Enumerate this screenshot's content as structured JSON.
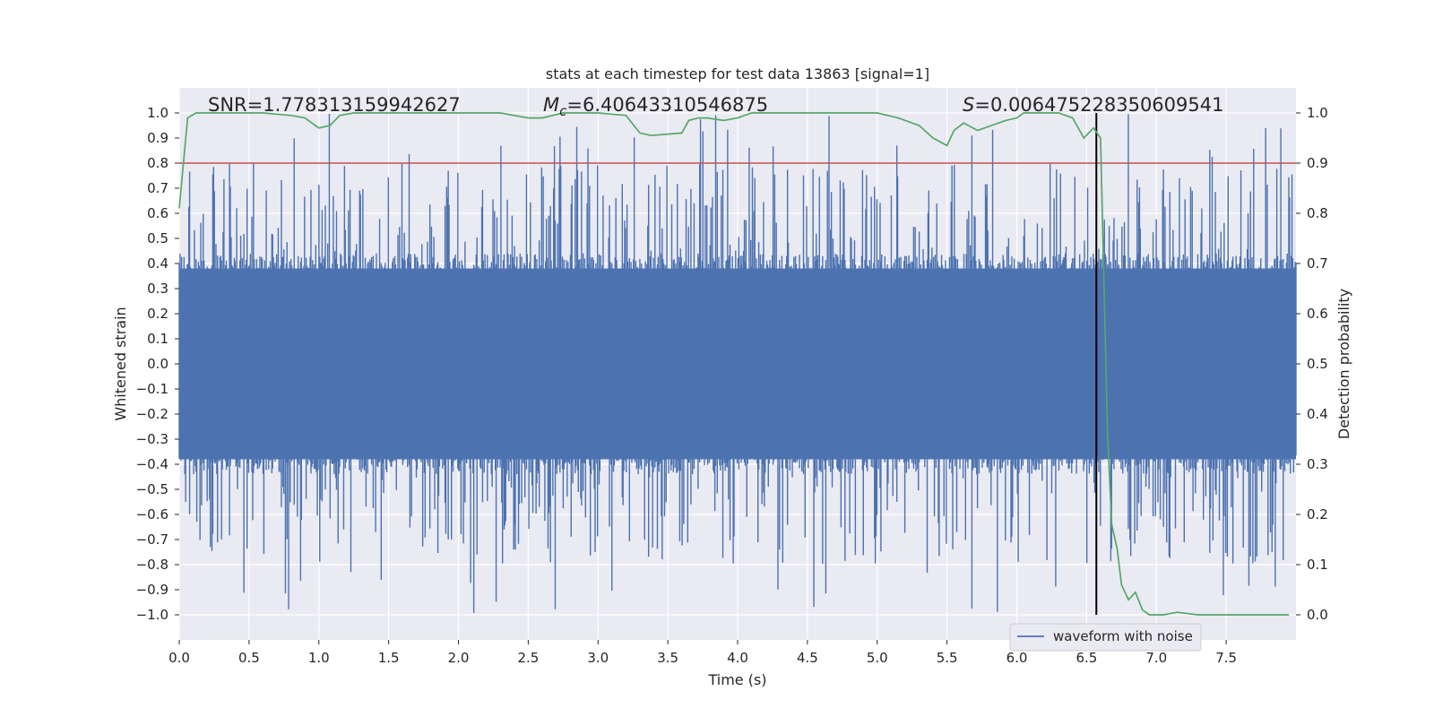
{
  "chart_data": {
    "type": "line",
    "title": "stats at each timestep for test data 13863 [signal=1]",
    "xlabel": "Time (s)",
    "ylabel": "Whitened strain",
    "y2label": "Detection probability",
    "xlim": [
      0.0,
      8.0
    ],
    "ylim": [
      -1.1,
      1.1
    ],
    "y2lim": [
      -0.05,
      1.05
    ],
    "xticks": [
      0.0,
      0.5,
      1.0,
      1.5,
      2.0,
      2.5,
      3.0,
      3.5,
      4.0,
      4.5,
      5.0,
      5.5,
      6.0,
      6.5,
      7.0,
      7.5
    ],
    "xtick_labels": [
      "0.0",
      "0.5",
      "1.0",
      "1.5",
      "2.0",
      "2.5",
      "3.0",
      "3.5",
      "4.0",
      "4.5",
      "5.0",
      "5.5",
      "6.0",
      "6.5",
      "7.0",
      "7.5"
    ],
    "yticks": [
      -1.0,
      -0.9,
      -0.8,
      -0.7,
      -0.6,
      -0.5,
      -0.4,
      -0.3,
      -0.2,
      -0.1,
      0.0,
      0.1,
      0.2,
      0.3,
      0.4,
      0.5,
      0.6,
      0.7,
      0.8,
      0.9,
      1.0
    ],
    "ytick_labels": [
      "−1.0",
      "−0.9",
      "−0.8",
      "−0.7",
      "−0.6",
      "−0.5",
      "−0.4",
      "−0.3",
      "−0.2",
      "−0.1",
      "0.0",
      "0.1",
      "0.2",
      "0.3",
      "0.4",
      "0.5",
      "0.6",
      "0.7",
      "0.8",
      "0.9",
      "1.0"
    ],
    "y2ticks": [
      0.0,
      0.1,
      0.2,
      0.3,
      0.4,
      0.5,
      0.6,
      0.7,
      0.8,
      0.9,
      1.0
    ],
    "y2tick_labels": [
      "0.0",
      "0.1",
      "0.2",
      "0.3",
      "0.4",
      "0.5",
      "0.6",
      "0.7",
      "0.8",
      "0.9",
      "1.0"
    ],
    "annotations": {
      "snr": "SNR=1.778313159942627",
      "mc_symbol": "M",
      "mc_subscript": "c",
      "mc_value": "=6.40643310546875",
      "s_symbol": "S",
      "s_value": "=0.006475228350609541"
    },
    "threshold": {
      "axis": "y2",
      "value": 0.9,
      "color": "#c44e52"
    },
    "event_marker": {
      "x": 6.57,
      "color": "#000000"
    },
    "waveform": {
      "name": "waveform with noise",
      "color": "#4c72b0",
      "samples": 1400,
      "duration_s": 8.0,
      "envelope_typical": 0.4,
      "peak_amplitude": 1.0
    },
    "detection_probability": {
      "name": "detection probability",
      "color": "#55a868",
      "x": [
        0.0,
        0.06,
        0.12,
        0.2,
        0.4,
        0.6,
        0.8,
        0.9,
        1.0,
        1.08,
        1.15,
        1.25,
        1.5,
        1.8,
        2.0,
        2.3,
        2.5,
        2.6,
        2.75,
        2.85,
        3.0,
        3.2,
        3.3,
        3.38,
        3.6,
        3.65,
        3.72,
        3.78,
        3.9,
        4.0,
        4.1,
        4.3,
        4.6,
        5.0,
        5.15,
        5.3,
        5.4,
        5.5,
        5.55,
        5.62,
        5.72,
        5.82,
        5.92,
        6.0,
        6.05,
        6.2,
        6.3,
        6.4,
        6.48,
        6.55,
        6.6,
        6.65,
        6.68,
        6.72,
        6.75,
        6.8,
        6.85,
        6.9,
        6.95,
        7.05,
        7.15,
        7.3,
        7.5,
        7.7,
        7.95
      ],
      "y": [
        0.81,
        0.99,
        1.0,
        1.0,
        1.0,
        1.0,
        0.995,
        0.99,
        0.97,
        0.975,
        0.995,
        1.0,
        1.0,
        1.0,
        1.0,
        1.0,
        0.99,
        0.99,
        1.0,
        1.0,
        1.0,
        0.995,
        0.96,
        0.955,
        0.96,
        0.985,
        0.99,
        0.99,
        0.985,
        0.99,
        1.0,
        1.0,
        1.0,
        1.0,
        0.99,
        0.975,
        0.95,
        0.935,
        0.965,
        0.98,
        0.965,
        0.975,
        0.985,
        0.99,
        1.0,
        1.0,
        1.0,
        0.99,
        0.95,
        0.97,
        0.95,
        0.36,
        0.18,
        0.13,
        0.06,
        0.03,
        0.045,
        0.01,
        0.0,
        0.0,
        0.005,
        0.0,
        0.0,
        0.0,
        0.0
      ]
    },
    "legend": {
      "entries": [
        "waveform with noise"
      ],
      "placement": "lower-right"
    }
  }
}
